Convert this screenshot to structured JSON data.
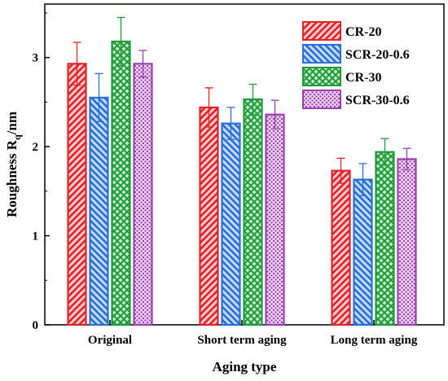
{
  "chart_data": {
    "type": "bar",
    "xlabel": "Aging type",
    "ylabel": "Roughness R",
    "ylabel_subscript": "q",
    "ylabel_unit": "/nm",
    "ylim": [
      0,
      3.6
    ],
    "yticks": [
      0,
      1,
      2,
      3
    ],
    "ytick_labels": [
      "0",
      "1",
      "2",
      "3"
    ],
    "categories": [
      "Original",
      "Short term aging",
      "Long term aging"
    ],
    "legend_position": "top-right",
    "grid": false,
    "series": [
      {
        "name": "CR-20",
        "color": "#e0252a",
        "fill": "#f9c9cc",
        "pattern": "diagonal-up",
        "values": [
          2.93,
          2.44,
          1.73
        ],
        "errors": [
          0.24,
          0.22,
          0.14
        ]
      },
      {
        "name": "SCR-20-0.6",
        "color": "#2a6fd6",
        "fill": "#c4d9f6",
        "pattern": "diagonal-down",
        "values": [
          2.55,
          2.26,
          1.63
        ],
        "errors": [
          0.27,
          0.18,
          0.18
        ]
      },
      {
        "name": "CR-30",
        "color": "#1f9a3a",
        "fill": "#c2ecc8",
        "pattern": "crosshatch",
        "values": [
          3.18,
          2.53,
          1.94
        ],
        "errors": [
          0.27,
          0.17,
          0.15
        ]
      },
      {
        "name": "SCR-30-0.6",
        "color": "#9a3fae",
        "fill": "#ecd2f2",
        "pattern": "dots",
        "values": [
          2.93,
          2.36,
          1.86
        ],
        "errors": [
          0.15,
          0.16,
          0.12
        ]
      }
    ]
  }
}
